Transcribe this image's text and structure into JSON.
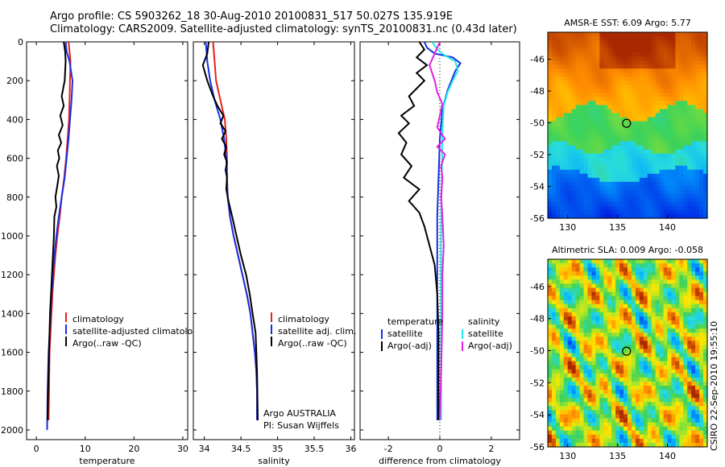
{
  "header": {
    "line1": "Argo profile: CS 5903262_18 30-Aug-2010 20100831_517 50.027S 135.919E",
    "line2": "Climatology: CARS2009. Satellite-adjusted climatology: synTS_20100831.nc (0.43d later)"
  },
  "side_label": "CSIRO 22-Sep-2010 19:55:10",
  "colors": {
    "climatology": "#e8201a",
    "satellite": "#1530e0",
    "argo": "#000000",
    "cyan": "#20e8e8",
    "magenta": "#e020e0"
  },
  "chart_data": [
    {
      "type": "line",
      "id": "temperature",
      "xlabel": "temperature",
      "ylabel": "",
      "xlim": [
        -2,
        31
      ],
      "ylim": [
        2050,
        0
      ],
      "xticks": [
        0,
        10,
        20,
        30
      ],
      "yticks": [
        0,
        200,
        400,
        600,
        800,
        1000,
        1200,
        1400,
        1600,
        1800,
        2000
      ],
      "legend": {
        "placement": "lower-right",
        "entries": [
          "climatology",
          "satellite-adjusted climatology",
          "Argo(..raw -QC)"
        ]
      },
      "series": [
        {
          "name": "climatology",
          "color": "climatology",
          "x": [
            6.6,
            6.8,
            7.0,
            6.9,
            6.8,
            6.7,
            6.4,
            6.1,
            5.7,
            5.2,
            4.8,
            4.3,
            3.9,
            3.6,
            3.3,
            3.1,
            2.9,
            2.7,
            2.6,
            2.5
          ],
          "y": [
            0,
            50,
            100,
            200,
            300,
            400,
            500,
            600,
            700,
            800,
            900,
            1000,
            1100,
            1200,
            1300,
            1400,
            1500,
            1600,
            1800,
            1950
          ]
        },
        {
          "name": "satellite-adjusted climatology",
          "color": "satellite",
          "x": [
            6.0,
            6.2,
            6.8,
            7.4,
            7.2,
            6.9,
            6.6,
            6.2,
            5.8,
            5.2,
            4.6,
            4.1,
            3.7,
            3.4,
            3.1,
            2.9,
            2.7,
            2.5,
            2.3,
            2.2
          ],
          "y": [
            0,
            50,
            100,
            200,
            300,
            400,
            500,
            600,
            700,
            800,
            900,
            1000,
            1100,
            1200,
            1300,
            1400,
            1500,
            1600,
            1800,
            2000
          ]
        },
        {
          "name": "Argo(..raw -QC)",
          "color": "argo",
          "x": [
            5.6,
            5.9,
            6.0,
            5.8,
            5.2,
            5.6,
            4.9,
            5.4,
            4.6,
            5.1,
            4.4,
            4.7,
            4.2,
            4.6,
            4.3,
            3.9,
            4.1,
            3.7,
            3.6,
            3.4,
            3.2,
            3.0,
            2.8,
            2.7,
            2.6,
            2.5,
            2.4,
            2.3
          ],
          "y": [
            0,
            50,
            100,
            200,
            280,
            330,
            380,
            430,
            480,
            520,
            560,
            600,
            640,
            690,
            740,
            800,
            850,
            900,
            1000,
            1100,
            1200,
            1300,
            1400,
            1500,
            1600,
            1700,
            1800,
            1950
          ]
        }
      ]
    },
    {
      "type": "line",
      "id": "salinity",
      "xlabel": "salinity",
      "ylabel": "",
      "xlim": [
        33.85,
        36.05
      ],
      "ylim": [
        2050,
        0
      ],
      "xticks": [
        34,
        34.5,
        35,
        35.5,
        36
      ],
      "yticks": [],
      "legend": {
        "placement": "lower-right",
        "entries": [
          "climatology",
          "satellite adj. clim.",
          "Argo(..raw -QC)"
        ]
      },
      "annotation": [
        "Argo AUSTRALIA",
        "PI: Susan Wijffels"
      ],
      "series": [
        {
          "name": "climatology",
          "color": "climatology",
          "x": [
            34.12,
            34.14,
            34.16,
            34.22,
            34.28,
            34.3,
            34.31,
            34.31,
            34.32,
            34.35,
            34.4,
            34.46,
            34.52,
            34.58,
            34.63,
            34.66,
            34.69,
            34.71,
            34.72,
            34.72
          ],
          "y": [
            0,
            100,
            200,
            300,
            400,
            500,
            600,
            700,
            800,
            900,
            1000,
            1100,
            1200,
            1300,
            1400,
            1500,
            1600,
            1700,
            1800,
            1950
          ]
        },
        {
          "name": "satellite adj. clim.",
          "color": "satellite",
          "x": [
            34.02,
            34.04,
            34.08,
            34.14,
            34.22,
            34.27,
            34.3,
            34.31,
            34.32,
            34.35,
            34.4,
            34.46,
            34.52,
            34.58,
            34.63,
            34.66,
            34.69,
            34.71,
            34.72,
            34.72
          ],
          "y": [
            0,
            100,
            200,
            300,
            400,
            500,
            600,
            700,
            800,
            900,
            1000,
            1100,
            1200,
            1300,
            1400,
            1500,
            1600,
            1700,
            1800,
            1950
          ]
        },
        {
          "name": "Argo(..raw -QC)",
          "color": "argo",
          "x": [
            34.06,
            34.04,
            33.98,
            34.04,
            34.12,
            34.18,
            34.26,
            34.22,
            34.29,
            34.24,
            34.3,
            34.27,
            34.31,
            34.29,
            34.31,
            34.3,
            34.33,
            34.38,
            34.44,
            34.5,
            34.57,
            34.62,
            34.66,
            34.7,
            34.72,
            34.73
          ],
          "y": [
            0,
            60,
            120,
            200,
            280,
            330,
            380,
            420,
            460,
            500,
            540,
            580,
            620,
            660,
            700,
            760,
            820,
            900,
            1000,
            1100,
            1200,
            1300,
            1400,
            1500,
            1700,
            1950
          ]
        }
      ]
    },
    {
      "type": "line",
      "id": "difference",
      "xlabel": "difference from climatology",
      "ylabel": "",
      "xlim": [
        -3.1,
        3.1
      ],
      "ylim": [
        2050,
        0
      ],
      "xticks": [
        -2,
        0,
        2
      ],
      "yticks": [],
      "legend": {
        "placement": "lower-center",
        "entries": [
          "temperature",
          "satellite",
          "Argo(-adj)",
          "salinity",
          "satellite",
          "Argo(-adj)"
        ]
      },
      "series": [
        {
          "name": "temperature satellite",
          "color": "satellite",
          "x": [
            -0.6,
            -0.5,
            -0.2,
            0.5,
            0.8,
            0.6,
            0.3,
            0.1,
            0.0,
            -0.05,
            -0.1,
            -0.1,
            -0.1,
            -0.1,
            -0.1,
            -0.1
          ],
          "y": [
            0,
            30,
            60,
            80,
            110,
            150,
            250,
            350,
            500,
            700,
            900,
            1100,
            1300,
            1500,
            1700,
            1950
          ]
        },
        {
          "name": "salinity satellite",
          "color": "cyan",
          "x": [
            -0.3,
            -0.1,
            0.2,
            0.6,
            0.7,
            0.5,
            0.3,
            0.15,
            0.1,
            0.08,
            0.06,
            0.05,
            0.05,
            0.05,
            0.05,
            0.05
          ],
          "y": [
            0,
            40,
            70,
            100,
            150,
            200,
            260,
            330,
            450,
            650,
            850,
            1050,
            1300,
            1550,
            1750,
            1950
          ]
        },
        {
          "name": "temperature Argo(-adj)",
          "color": "argo",
          "x": [
            -0.8,
            -0.6,
            -0.9,
            -0.5,
            -0.9,
            -0.6,
            -1.2,
            -1.0,
            -1.5,
            -1.2,
            -1.6,
            -1.3,
            -1.5,
            -1.1,
            -1.4,
            -0.8,
            -1.2,
            -0.8,
            -0.6,
            -0.4,
            -0.2,
            -0.1,
            -0.05,
            -0.05
          ],
          "y": [
            0,
            40,
            80,
            120,
            160,
            200,
            280,
            330,
            380,
            420,
            470,
            520,
            580,
            640,
            700,
            760,
            820,
            880,
            950,
            1050,
            1150,
            1300,
            1500,
            1950
          ]
        },
        {
          "name": "salinity Argo(-adj)",
          "color": "magenta",
          "x": [
            0.0,
            -0.2,
            -0.4,
            -0.2,
            -0.1,
            0.1,
            0.0,
            -0.1,
            0.2,
            -0.1,
            0.2,
            0.05,
            0.1,
            0.05,
            0.1,
            0.15,
            0.1,
            0.1,
            0.05,
            0.0
          ],
          "y": [
            0,
            60,
            120,
            200,
            260,
            320,
            380,
            440,
            500,
            540,
            580,
            640,
            700,
            800,
            900,
            1050,
            1200,
            1400,
            1700,
            1950
          ]
        }
      ]
    }
  ],
  "maps": [
    {
      "id": "sst",
      "title": "AMSR-E SST: 6.09 Argo: 5.77",
      "xticks": [
        130,
        135,
        140
      ],
      "yticks": [
        -46,
        -48,
        -50,
        -52,
        -54,
        -56
      ],
      "xlim": [
        128,
        144
      ],
      "ylim": [
        -56,
        -44.3
      ],
      "marker": {
        "lon": 135.9,
        "lat": -50.03
      }
    },
    {
      "id": "sla",
      "title": "Altimetric SLA: 0.009 Argo: -0.058",
      "xticks": [
        130,
        135,
        140
      ],
      "yticks": [
        -46,
        -48,
        -50,
        -52,
        -54,
        -56
      ],
      "xlim": [
        128,
        144
      ],
      "ylim": [
        -56,
        -44.3
      ],
      "marker": {
        "lon": 135.9,
        "lat": -50.03
      }
    }
  ]
}
